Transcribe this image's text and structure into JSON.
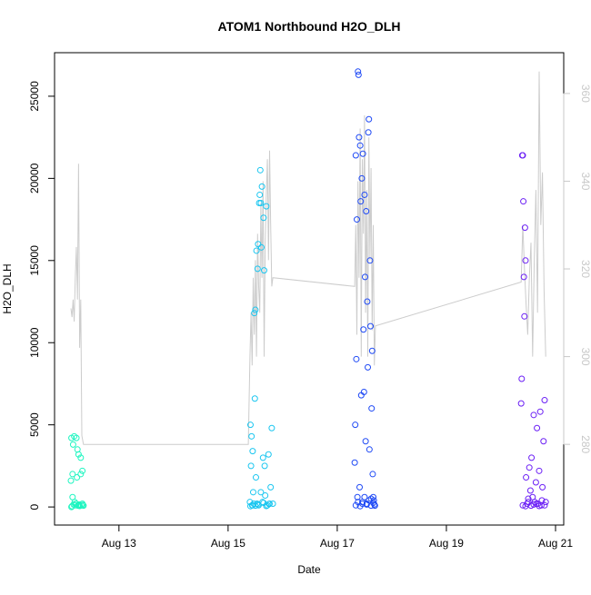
{
  "chart_data": {
    "type": "scatter",
    "title": "ATOM1 Northbound H2O_DLH",
    "x_label": "Date",
    "y_label": "H2O_DLH",
    "xlim": [
      11.82,
      21.15
    ],
    "xticks": [
      {
        "value": 13,
        "label": "Aug 13"
      },
      {
        "value": 15,
        "label": "Aug 15"
      },
      {
        "value": 17,
        "label": "Aug 17"
      },
      {
        "value": 19,
        "label": "Aug 19"
      },
      {
        "value": 21,
        "label": "Aug 21"
      }
    ],
    "ylim": [
      -1100,
      27650
    ],
    "yticks": [
      0,
      5000,
      10000,
      15000,
      20000,
      25000
    ],
    "y2lim": [
      261.6,
      369.3
    ],
    "y2ticks": [
      280,
      300,
      320,
      340,
      360
    ],
    "y2_color": "#c8c8c8",
    "series": [
      {
        "type": "line",
        "axis": "y2",
        "color": "#cccccc",
        "x": [
          12.12,
          12.14,
          12.16,
          12.18,
          12.2,
          12.22,
          12.24,
          12.26,
          12.28,
          12.3,
          12.32,
          12.35,
          15.37,
          15.4,
          15.42,
          15.44,
          15.46,
          15.48,
          15.5,
          15.52,
          15.54,
          15.56,
          15.58,
          15.6,
          15.62,
          15.64,
          15.66,
          15.68,
          15.7,
          15.72,
          15.74,
          15.76,
          15.78,
          15.8,
          15.82,
          17.32,
          17.34,
          17.36,
          17.38,
          17.4,
          17.42,
          17.44,
          17.46,
          17.48,
          17.5,
          17.52,
          17.54,
          17.56,
          17.58,
          17.6,
          17.62,
          17.64,
          17.66,
          17.68,
          17.7,
          20.37,
          20.4,
          20.43,
          20.46,
          20.49,
          20.52,
          20.55,
          20.58,
          20.61,
          20.64,
          20.67,
          20.7,
          20.73,
          20.76,
          20.79,
          20.82
        ],
        "values": [
          311,
          309,
          313,
          308,
          318,
          325,
          313,
          344,
          302,
          313,
          282,
          280,
          280,
          300,
          310,
          298,
          318,
          305,
          322,
          300,
          328,
          316,
          310,
          335,
          318,
          340,
          300,
          326,
          337,
          345,
          322,
          347,
          330,
          316,
          318,
          316,
          330,
          305,
          340,
          318,
          352,
          300,
          345,
          328,
          355,
          310,
          338,
          300,
          350,
          322,
          343,
          306,
          330,
          298,
          307,
          317,
          330,
          320,
          312,
          305,
          318,
          326,
          300,
          322,
          338,
          310,
          365,
          330,
          342,
          315,
          300
        ]
      },
      {
        "color": "#1ef5c0",
        "x": [
          12.12,
          12.13,
          12.14,
          12.15,
          12.16,
          12.17,
          12.18,
          12.2,
          12.21,
          12.22,
          12.24,
          12.25,
          12.26,
          12.27,
          12.28,
          12.3,
          12.31,
          12.33,
          12.34,
          12.35,
          12.13,
          12.15,
          12.19,
          12.23,
          12.27,
          12.3,
          12.33
        ],
        "values": [
          1600,
          4200,
          50,
          2000,
          3800,
          150,
          4300,
          100,
          200,
          4200,
          3500,
          80,
          3200,
          150,
          60,
          2000,
          100,
          2200,
          120,
          80,
          0,
          600,
          300,
          1800,
          100,
          3000,
          200
        ]
      },
      {
        "color": "#1ac6f0",
        "x": [
          15.4,
          15.41,
          15.42,
          15.43,
          15.44,
          15.45,
          15.46,
          15.47,
          15.48,
          15.49,
          15.5,
          15.51,
          15.52,
          15.53,
          15.54,
          15.55,
          15.56,
          15.57,
          15.58,
          15.59,
          15.6,
          15.61,
          15.62,
          15.63,
          15.64,
          15.65,
          15.66,
          15.67,
          15.68,
          15.7,
          15.72,
          15.74,
          15.76,
          15.78,
          15.8,
          15.82,
          15.41,
          15.45,
          15.5,
          15.55,
          15.6,
          15.65,
          15.7,
          15.75
        ],
        "values": [
          300,
          5000,
          2500,
          4300,
          100,
          3400,
          900,
          200,
          11800,
          6600,
          12000,
          1800,
          15600,
          200,
          14500,
          16000,
          100,
          18500,
          19000,
          20500,
          18500,
          15800,
          19500,
          300,
          3000,
          17600,
          14400,
          2500,
          700,
          18300,
          100,
          3200,
          200,
          1200,
          4800,
          200,
          50,
          100,
          80,
          150,
          900,
          250,
          60,
          180
        ]
      },
      {
        "color": "#1f4af5",
        "x": [
          17.32,
          17.33,
          17.34,
          17.35,
          17.36,
          17.37,
          17.38,
          17.39,
          17.4,
          17.41,
          17.42,
          17.43,
          17.44,
          17.45,
          17.46,
          17.47,
          17.48,
          17.49,
          17.5,
          17.51,
          17.52,
          17.53,
          17.54,
          17.55,
          17.56,
          17.57,
          17.58,
          17.59,
          17.6,
          17.61,
          17.62,
          17.63,
          17.64,
          17.65,
          17.66,
          17.67,
          17.68,
          17.69,
          17.34,
          17.38,
          17.42,
          17.46,
          17.5,
          17.54,
          17.58,
          17.62,
          17.66
        ],
        "values": [
          2700,
          5000,
          21400,
          9000,
          17500,
          600,
          26500,
          26300,
          22500,
          1200,
          22000,
          18600,
          6800,
          20000,
          300,
          21500,
          10800,
          7000,
          19000,
          14000,
          4000,
          18000,
          200,
          12500,
          8500,
          22800,
          23600,
          3500,
          15000,
          11000,
          500,
          6000,
          9500,
          2000,
          600,
          400,
          150,
          80,
          100,
          300,
          50,
          200,
          600,
          150,
          400,
          80,
          250
        ]
      },
      {
        "color": "#6b1ff5",
        "x": [
          20.37,
          20.38,
          20.39,
          20.4,
          20.41,
          20.42,
          20.43,
          20.44,
          20.45,
          20.46,
          20.48,
          20.5,
          20.52,
          20.54,
          20.56,
          20.58,
          20.6,
          20.62,
          20.64,
          20.66,
          20.68,
          20.7,
          20.72,
          20.74,
          20.76,
          20.78,
          20.8,
          20.82,
          20.4,
          20.45,
          20.5,
          20.55,
          20.6,
          20.65,
          20.7,
          20.75,
          20.8
        ],
        "values": [
          6300,
          7800,
          21400,
          21400,
          18600,
          14000,
          11600,
          17000,
          15000,
          1800,
          200,
          500,
          2400,
          1000,
          3000,
          600,
          5600,
          300,
          1500,
          4800,
          200,
          2200,
          5800,
          100,
          1200,
          4000,
          6500,
          300,
          100,
          50,
          300,
          80,
          150,
          200,
          60,
          400,
          100
        ]
      }
    ]
  }
}
